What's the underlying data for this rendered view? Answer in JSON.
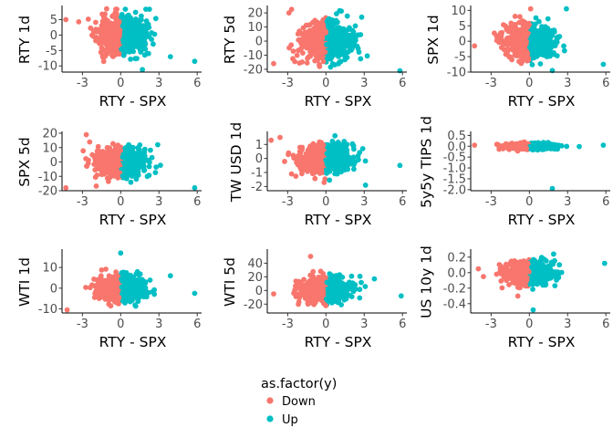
{
  "colors": {
    "Down": "#F8766D",
    "Up": "#00BFC4"
  },
  "chart_data": [
    {
      "type": "scatter",
      "xlabel": "RTY - SPX",
      "ylabel": "RTY 1d",
      "xlim": [
        -4.6,
        6.2
      ],
      "ylim": [
        -12.0,
        9.0
      ],
      "xticks": [
        -3,
        0,
        3,
        6
      ],
      "xtick_labels": [
        "-3",
        "0",
        "3",
        "6"
      ],
      "yticks": [
        -10,
        -5,
        0,
        5
      ],
      "ytick_labels": [
        "-10",
        "-5",
        "0",
        "5"
      ],
      "spread_x": 0.95,
      "spread_y": 3.0,
      "seed": 11,
      "highlights": [
        {
          "x": -4.3,
          "y": 5.0,
          "class": "Down"
        },
        {
          "x": -1.1,
          "y": 8.5,
          "class": "Down"
        },
        {
          "x": 5.8,
          "y": -8.5,
          "class": "Up"
        },
        {
          "x": 1.7,
          "y": -11.2,
          "class": "Up"
        },
        {
          "x": 3.9,
          "y": -7.0,
          "class": "Up"
        }
      ]
    },
    {
      "type": "scatter",
      "xlabel": "RTY - SPX",
      "ylabel": "RTY 5d",
      "xlim": [
        -4.6,
        6.2
      ],
      "ylim": [
        -22.0,
        24.0
      ],
      "xticks": [
        -3,
        0,
        3,
        6
      ],
      "xtick_labels": [
        "-3",
        "0",
        "3",
        "6"
      ],
      "yticks": [
        -20,
        -10,
        0,
        10,
        20
      ],
      "ytick_labels": [
        "-20",
        "-10",
        "0",
        "10",
        "20"
      ],
      "spread_x": 0.95,
      "spread_y": 6.5,
      "seed": 23,
      "highlights": [
        {
          "x": -2.7,
          "y": 22.5,
          "class": "Down"
        },
        {
          "x": -2.9,
          "y": 20.0,
          "class": "Down"
        },
        {
          "x": -4.1,
          "y": -16.0,
          "class": "Down"
        },
        {
          "x": 5.8,
          "y": -21.0,
          "class": "Up"
        },
        {
          "x": 2.8,
          "y": 17.0,
          "class": "Up"
        }
      ]
    },
    {
      "type": "scatter",
      "xlabel": "RTY - SPX",
      "ylabel": "SPX 1d",
      "xlim": [
        -4.6,
        6.2
      ],
      "ylim": [
        -10.0,
        11.0
      ],
      "xticks": [
        -3,
        0,
        3,
        6
      ],
      "xtick_labels": [
        "-3",
        "0",
        "3",
        "6"
      ],
      "yticks": [
        -10,
        -5,
        0,
        5,
        10
      ],
      "ytick_labels": [
        "-10",
        "-5",
        "0",
        "5",
        "10"
      ],
      "spread_x": 0.95,
      "spread_y": 2.6,
      "seed": 37,
      "highlights": [
        {
          "x": -4.3,
          "y": -1.5,
          "class": "Down"
        },
        {
          "x": 0.1,
          "y": 10.5,
          "class": "Down"
        },
        {
          "x": 2.9,
          "y": 10.5,
          "class": "Up"
        },
        {
          "x": 5.8,
          "y": -7.5,
          "class": "Up"
        },
        {
          "x": 1.8,
          "y": -9.5,
          "class": "Up"
        }
      ]
    },
    {
      "type": "scatter",
      "xlabel": "RTY - SPX",
      "ylabel": "SPX 5d",
      "xlim": [
        -4.6,
        6.2
      ],
      "ylim": [
        -20.0,
        20.0
      ],
      "xticks": [
        -3,
        0,
        3,
        6
      ],
      "xtick_labels": [
        "-3",
        "0",
        "3",
        "6"
      ],
      "yticks": [
        -20,
        -10,
        0,
        10,
        20
      ],
      "ytick_labels": [
        "-20",
        "-10",
        "0",
        "10",
        "20"
      ],
      "spread_x": 0.95,
      "spread_y": 5.0,
      "seed": 41,
      "highlights": [
        {
          "x": -2.7,
          "y": 19.0,
          "class": "Down"
        },
        {
          "x": -4.3,
          "y": -18.0,
          "class": "Down"
        },
        {
          "x": 5.8,
          "y": -18.0,
          "class": "Up"
        },
        {
          "x": 2.9,
          "y": 12.0,
          "class": "Up"
        }
      ]
    },
    {
      "type": "scatter",
      "xlabel": "RTY - SPX",
      "ylabel": "TW USD 1d",
      "xlim": [
        -4.6,
        6.2
      ],
      "ylim": [
        -2.3,
        1.8
      ],
      "xticks": [
        -3,
        0,
        3,
        6
      ],
      "xtick_labels": [
        "-3",
        "0",
        "3",
        "6"
      ],
      "yticks": [
        -2,
        -1,
        0,
        1
      ],
      "ytick_labels": [
        "-2",
        "-1",
        "0",
        "1"
      ],
      "spread_x": 0.95,
      "spread_y": 0.5,
      "seed": 53,
      "highlights": [
        {
          "x": -4.3,
          "y": 1.3,
          "class": "Down"
        },
        {
          "x": -3.6,
          "y": 1.5,
          "class": "Down"
        },
        {
          "x": 5.8,
          "y": -0.5,
          "class": "Up"
        },
        {
          "x": 3.1,
          "y": -1.9,
          "class": "Up"
        }
      ]
    },
    {
      "type": "scatter",
      "xlabel": "RTY - SPX",
      "ylabel": "5y5y TIPS 1d",
      "xlim": [
        -4.6,
        6.2
      ],
      "ylim": [
        -2.05,
        0.6
      ],
      "xticks": [
        -3,
        0,
        3,
        6
      ],
      "xtick_labels": [
        "-3",
        "0",
        "3",
        "6"
      ],
      "yticks": [
        -2.0,
        -1.5,
        -1.0,
        -0.5,
        0.0,
        0.5
      ],
      "ytick_labels": [
        "-2.0",
        "-1.5",
        "-1.0",
        "-0.5",
        "0.0",
        "0.5"
      ],
      "spread_x": 0.95,
      "spread_y": 0.06,
      "seed": 67,
      "highlights": [
        {
          "x": -4.3,
          "y": 0.05,
          "class": "Down"
        },
        {
          "x": 5.8,
          "y": 0.05,
          "class": "Up"
        },
        {
          "x": 1.8,
          "y": -1.95,
          "class": "Up"
        }
      ]
    },
    {
      "type": "scatter",
      "xlabel": "RTY - SPX",
      "ylabel": "WTI 1d",
      "xlim": [
        -4.6,
        6.2
      ],
      "ylim": [
        -12.0,
        18.0
      ],
      "xticks": [
        -3,
        0,
        3,
        6
      ],
      "xtick_labels": [
        "-3",
        "0",
        "3",
        "6"
      ],
      "yticks": [
        -10,
        0,
        10
      ],
      "ytick_labels": [
        "-10",
        "0",
        "10"
      ],
      "spread_x": 0.95,
      "spread_y": 3.0,
      "seed": 79,
      "highlights": [
        {
          "x": -4.2,
          "y": -10.5,
          "class": "Down"
        },
        {
          "x": 0.0,
          "y": 17.0,
          "class": "Up"
        },
        {
          "x": 5.8,
          "y": -2.5,
          "class": "Up"
        },
        {
          "x": 3.9,
          "y": 6.0,
          "class": "Up"
        }
      ]
    },
    {
      "type": "scatter",
      "xlabel": "RTY - SPX",
      "ylabel": "WTI 5d",
      "xlim": [
        -4.6,
        6.2
      ],
      "ylim": [
        -33.0,
        58.0
      ],
      "xticks": [
        -3,
        0,
        3,
        6
      ],
      "xtick_labels": [
        "-3",
        "0",
        "3",
        "6"
      ],
      "yticks": [
        -20,
        0,
        20,
        40
      ],
      "ytick_labels": [
        "-20",
        "0",
        "20",
        "40"
      ],
      "spread_x": 0.95,
      "spread_y": 9.0,
      "seed": 97,
      "highlights": [
        {
          "x": -1.2,
          "y": 50.0,
          "class": "Down"
        },
        {
          "x": -4.1,
          "y": -5.0,
          "class": "Down"
        },
        {
          "x": 5.9,
          "y": -8.0,
          "class": "Up"
        },
        {
          "x": 3.8,
          "y": 17.0,
          "class": "Up"
        }
      ]
    },
    {
      "type": "scatter",
      "xlabel": "RTY - SPX",
      "ylabel": "US 10y 1d",
      "xlim": [
        -4.6,
        6.2
      ],
      "ylim": [
        -0.52,
        0.28
      ],
      "xticks": [
        -3,
        0,
        3,
        6
      ],
      "xtick_labels": [
        "-3",
        "0",
        "3",
        "6"
      ],
      "yticks": [
        -0.4,
        -0.2,
        0.0,
        0.2
      ],
      "ytick_labels": [
        "-0.4",
        "-0.2",
        "0.0",
        "0.2"
      ],
      "spread_x": 0.95,
      "spread_y": 0.075,
      "seed": 113,
      "highlights": [
        {
          "x": -4.0,
          "y": 0.05,
          "class": "Down"
        },
        {
          "x": -3.6,
          "y": -0.05,
          "class": "Down"
        },
        {
          "x": 5.9,
          "y": 0.12,
          "class": "Up"
        },
        {
          "x": 0.3,
          "y": -0.48,
          "class": "Up"
        },
        {
          "x": 1.9,
          "y": 0.24,
          "class": "Up"
        }
      ]
    }
  ],
  "legend": {
    "title": "as.factor(y)",
    "items": [
      {
        "label": "Down",
        "class": "Down"
      },
      {
        "label": "Up",
        "class": "Up"
      }
    ]
  }
}
